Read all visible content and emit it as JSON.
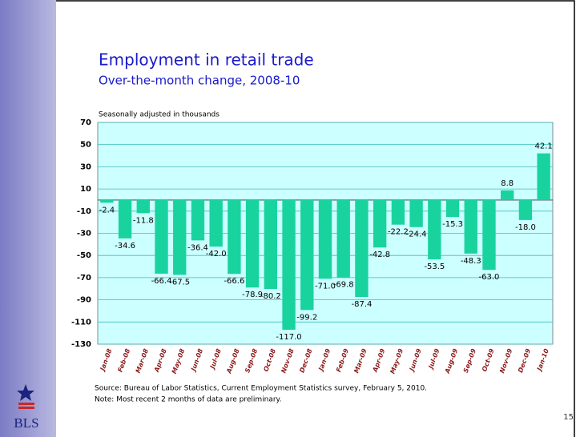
{
  "chart_data": {
    "type": "bar",
    "title": "Employment in retail trade",
    "subtitle": "Over-the-month change, 2008-10",
    "y_label": "Seasonally adjusted in thousands",
    "categories": [
      "Jan-08",
      "Feb-08",
      "Mar-08",
      "Apr-08",
      "May-08",
      "Jun-08",
      "Jul-08",
      "Aug-08",
      "Sep-08",
      "Oct-08",
      "Nov-08",
      "Dec-08",
      "Jan-09",
      "Feb-09",
      "Mar-09",
      "Apr-09",
      "May-09",
      "Jun-09",
      "Jul-09",
      "Aug-09",
      "Sep-09",
      "Oct-09",
      "Nov-09",
      "Dec-09",
      "Jan-10"
    ],
    "values": [
      -2.4,
      -34.6,
      -11.8,
      -66.4,
      -67.5,
      -36.4,
      -42,
      -66.6,
      -78.9,
      -80.2,
      -117,
      -99.2,
      -71,
      -69.8,
      -87.4,
      -42.8,
      -22.2,
      -24.4,
      -53.5,
      -15.3,
      -48.3,
      -63,
      8.8,
      -18,
      42.1
    ],
    "value_labels": [
      "-2.4",
      "-34.6",
      "-11.8",
      "-66.4",
      "-67.5",
      "-36.4",
      "-42.0",
      "-66.6",
      "-78.9",
      "-80.2",
      "-117.0",
      "-99.2",
      "-71.0",
      "-69.8",
      "-87.4",
      "-42.8",
      "-22.2",
      "-24.4",
      "-53.5",
      "-15.3",
      "-48.3",
      "-63.0",
      "8.8",
      "-18.0",
      "42.1"
    ],
    "color": "#19d39f",
    "ylim": [
      -130,
      70
    ],
    "yticks": [
      70,
      50,
      30,
      10,
      -10,
      -30,
      -50,
      -70,
      -90,
      -110,
      -130
    ],
    "grid": true,
    "source": "Source:  Bureau of Labor Statistics, Current Employment Statistics survey, February 5, 2010.",
    "note": "Note:  Most recent 2 months of data are preliminary.",
    "page_number": "15",
    "logo": "BLS"
  }
}
